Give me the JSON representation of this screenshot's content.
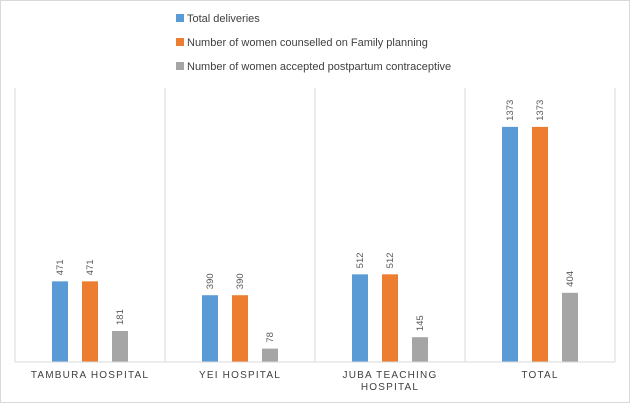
{
  "chart_data": {
    "type": "bar",
    "categories": [
      [
        "TAMBURA HOSPITAL"
      ],
      [
        "YEI HOSPITAL"
      ],
      [
        "JUBA TEACHING",
        "HOSPITAL"
      ],
      [
        "TOTAL"
      ]
    ],
    "series": [
      {
        "name": "Total deliveries",
        "color": "#5b9bd5",
        "values": [
          471,
          390,
          512,
          1373
        ]
      },
      {
        "name": "Number of women counselled on Family planning",
        "color": "#ed7d31",
        "values": [
          471,
          390,
          512,
          1373
        ]
      },
      {
        "name": "Number of women accepted postpartum contraceptive",
        "color": "#a5a5a5",
        "values": [
          181,
          78,
          145,
          404
        ]
      }
    ],
    "ylim": [
      0,
      1600
    ],
    "legend_position": "top-left",
    "grid": false,
    "category_separators": true
  }
}
